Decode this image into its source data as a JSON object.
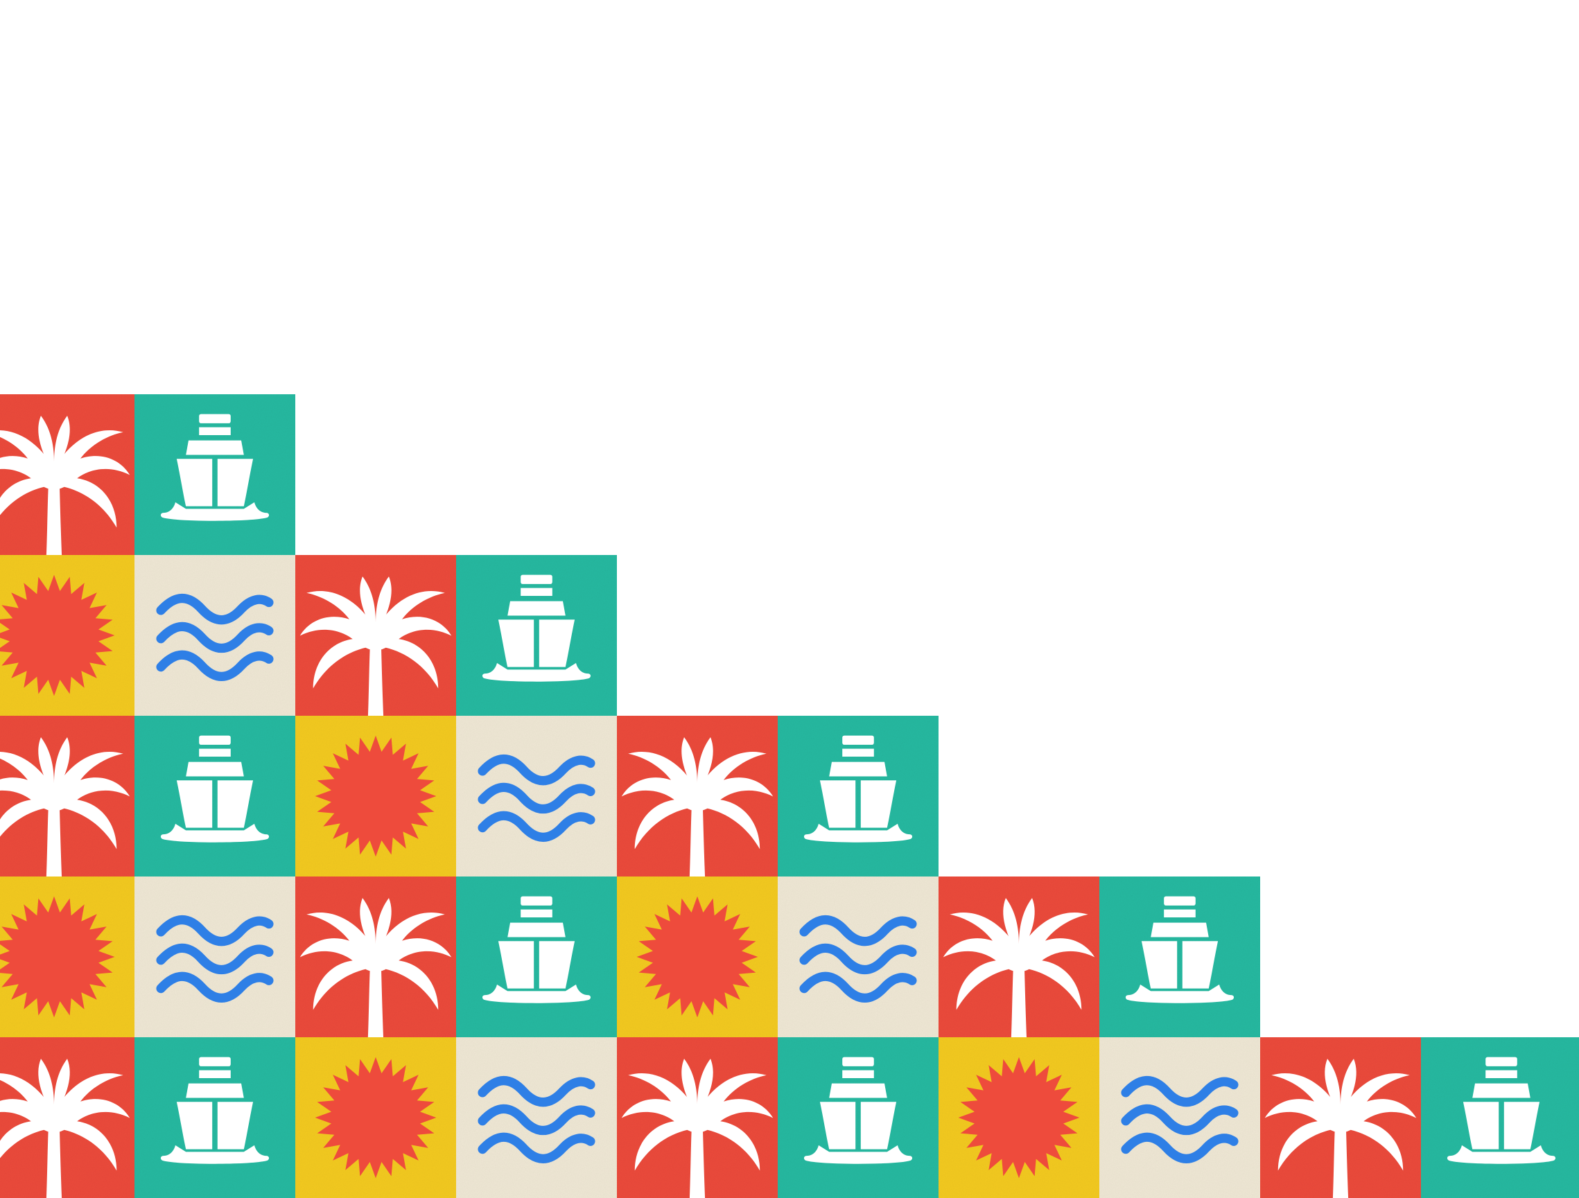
{
  "colors": {
    "background": "#ffffff",
    "red": "#ee4b3c",
    "teal": "#26bba2",
    "yellow": "#f6cc20",
    "cream": "#f2ead7",
    "wave_blue": "#2e7fe6",
    "sun_red": "#ee4b3c",
    "white": "#ffffff"
  },
  "tile_types": {
    "palm": {
      "icon": "palm-tree-icon",
      "bg": "red"
    },
    "ship": {
      "icon": "ship-icon",
      "bg": "teal"
    },
    "sun": {
      "icon": "sun-icon",
      "bg": "yellow"
    },
    "waves": {
      "icon": "waves-icon",
      "bg": "cream"
    }
  },
  "rows": [
    [
      "palm",
      "ship"
    ],
    [
      "sun",
      "waves",
      "palm",
      "ship"
    ],
    [
      "palm",
      "ship",
      "sun",
      "waves",
      "palm",
      "ship"
    ],
    [
      "sun",
      "waves",
      "palm",
      "ship",
      "sun",
      "waves",
      "palm",
      "ship"
    ],
    [
      "palm",
      "ship",
      "sun",
      "waves",
      "palm",
      "ship",
      "sun",
      "waves",
      "palm",
      "ship"
    ]
  ]
}
